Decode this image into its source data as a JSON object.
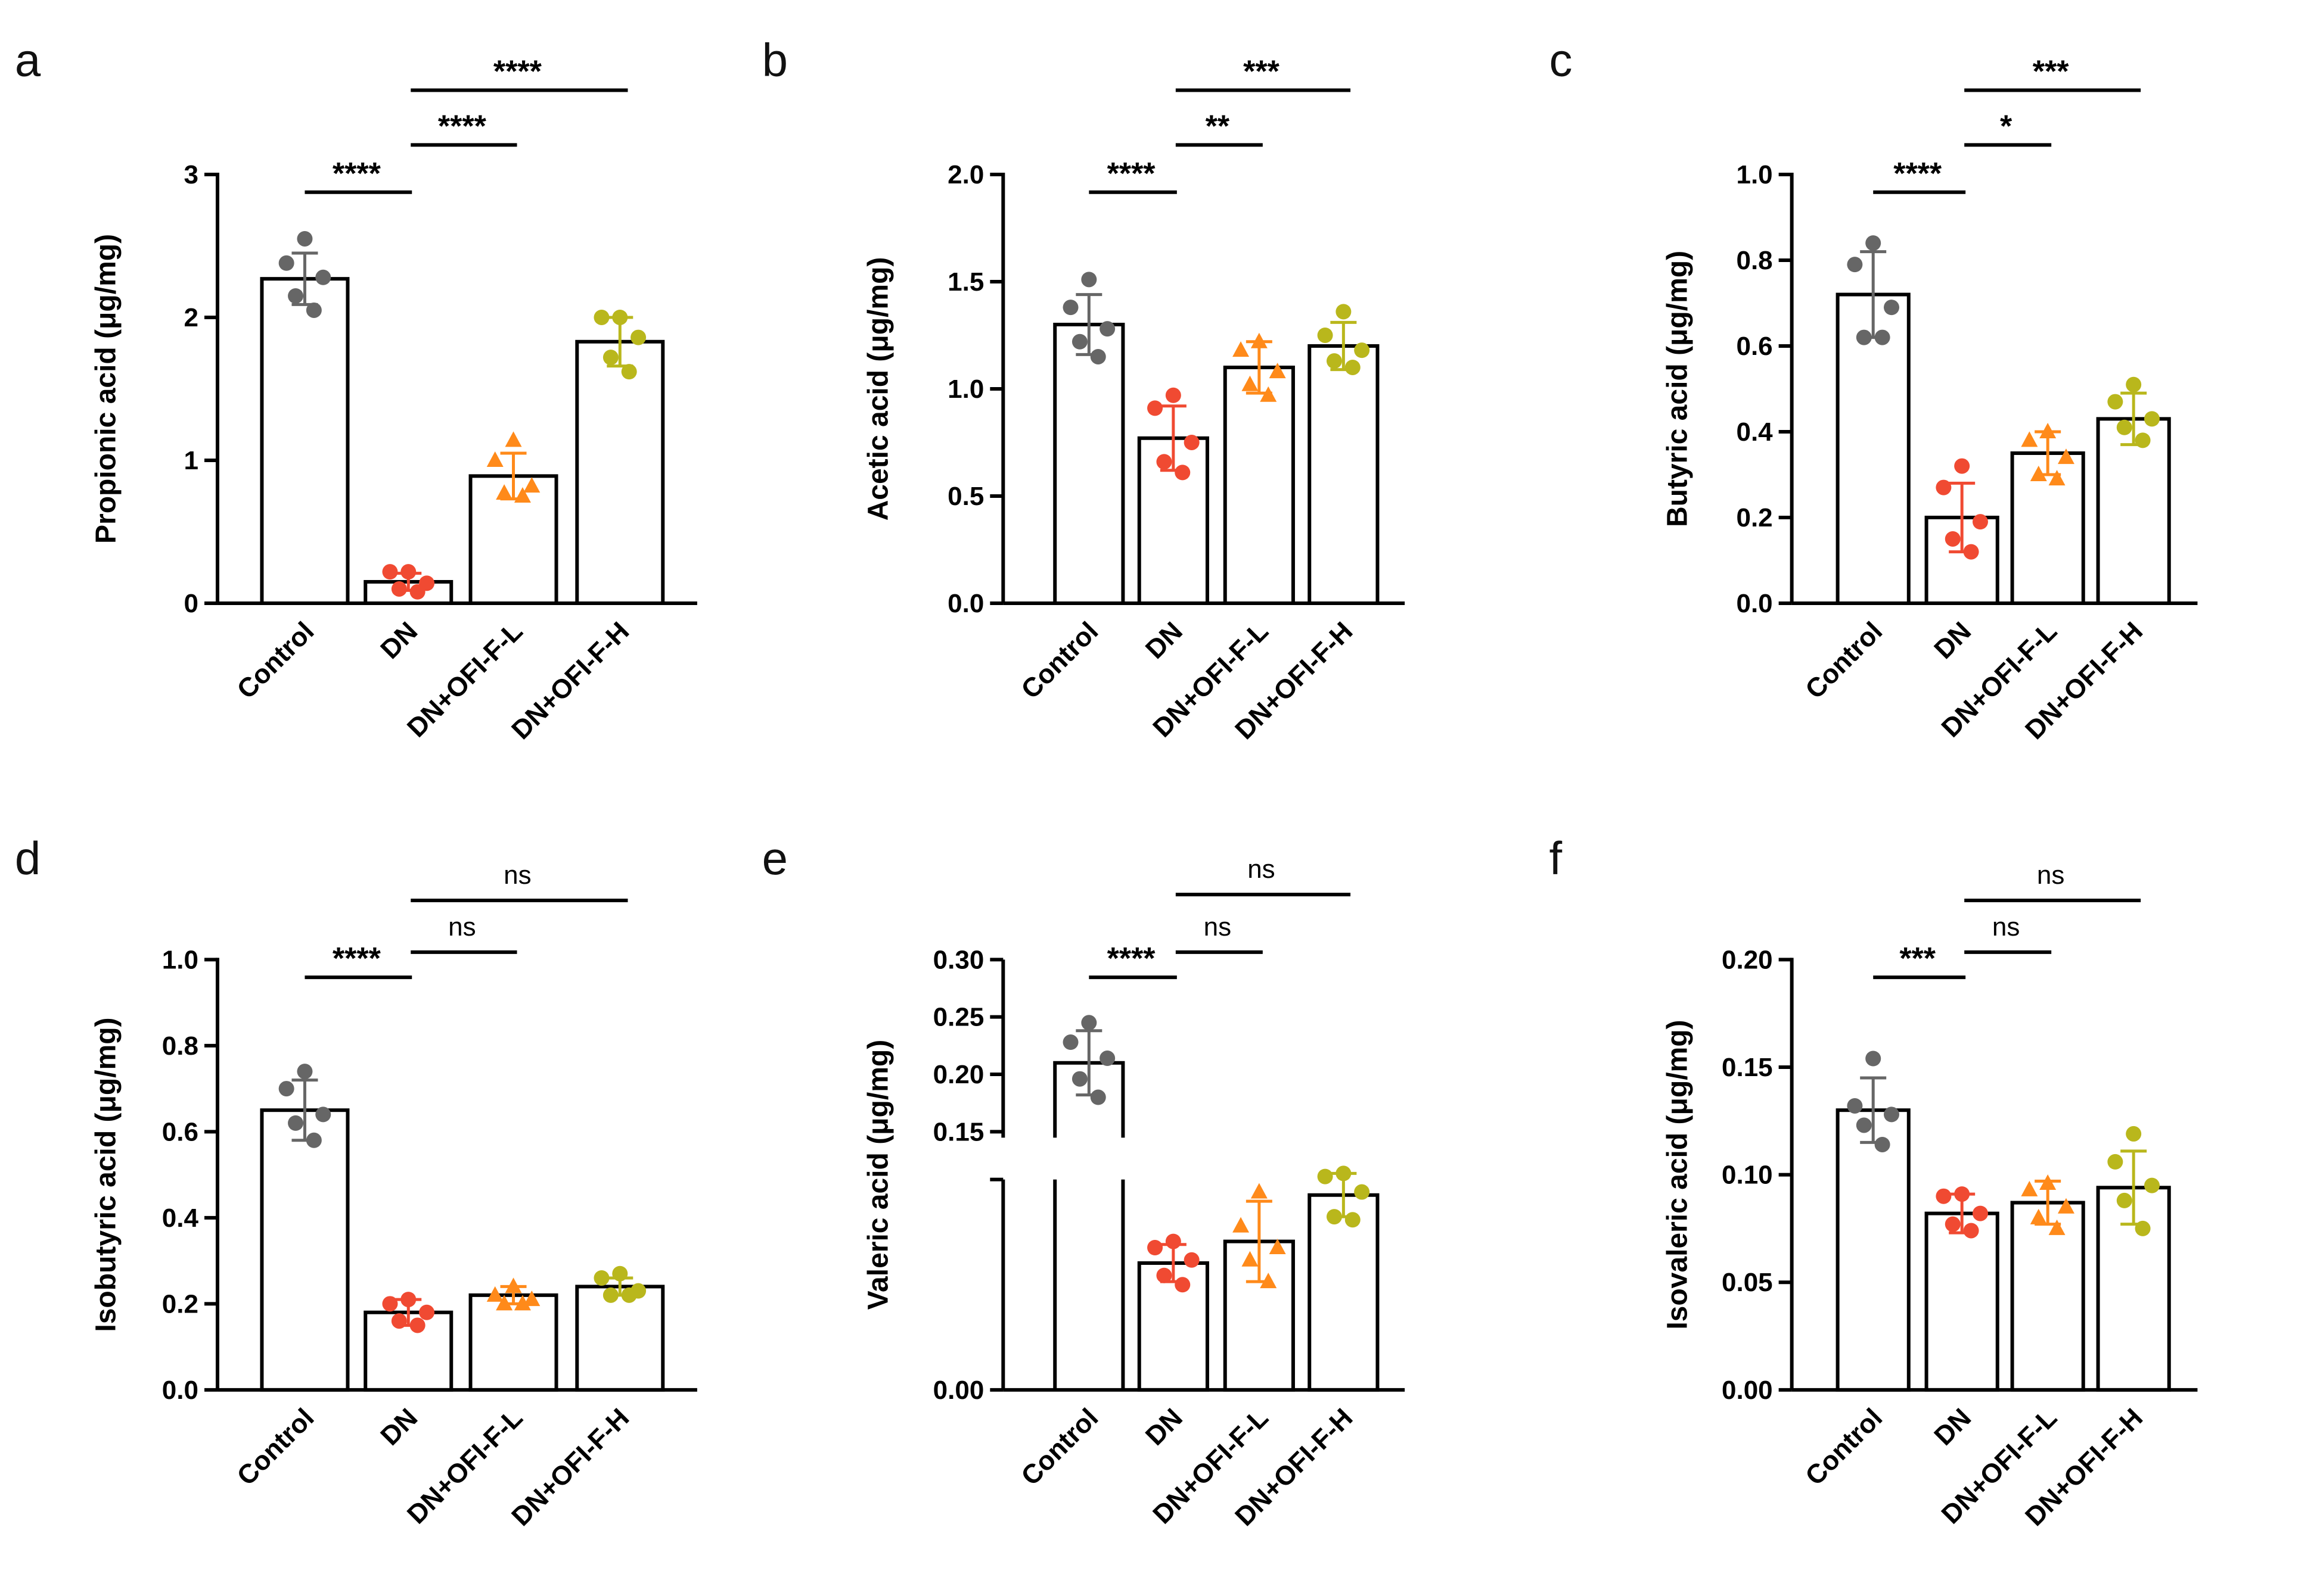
{
  "categories": [
    "Control",
    "DN",
    "DN+OFI-F-L",
    "DN+OFI-F-H"
  ],
  "group_colors": [
    "#666666",
    "#f04a32",
    "#ff8a1a",
    "#b9b71c"
  ],
  "group_markers": [
    "circle",
    "circle",
    "triangle",
    "circle"
  ],
  "chart_data": [
    {
      "panel": "a",
      "type": "bar",
      "ylabel": "Propionic acid (μg/mg)",
      "ylim": [
        0,
        3
      ],
      "yticks": [
        0,
        1,
        2,
        3
      ],
      "tick_decimals": 0,
      "categories": [
        "Control",
        "DN",
        "DN+OFI-F-L",
        "DN+OFI-F-H"
      ],
      "values": [
        2.27,
        0.15,
        0.89,
        1.83
      ],
      "sd": [
        0.18,
        0.06,
        0.16,
        0.17
      ],
      "points": [
        [
          2.55,
          2.38,
          2.28,
          2.15,
          2.05
        ],
        [
          0.22,
          0.22,
          0.14,
          0.1,
          0.08
        ],
        [
          1.14,
          1.0,
          0.82,
          0.77,
          0.75
        ],
        [
          2.0,
          2.0,
          1.86,
          1.72,
          1.62
        ]
      ],
      "comparisons": [
        {
          "from": 0,
          "to": 1,
          "label": "****"
        },
        {
          "from": 1,
          "to": 2,
          "label": "****"
        },
        {
          "from": 1,
          "to": 3,
          "label": "****"
        }
      ]
    },
    {
      "panel": "b",
      "type": "bar",
      "ylabel": "Acetic acid (μg/mg)",
      "ylim": [
        0,
        2
      ],
      "yticks": [
        0.0,
        0.5,
        1.0,
        1.5,
        2.0
      ],
      "tick_decimals": 1,
      "categories": [
        "Control",
        "DN",
        "DN+OFI-F-L",
        "DN+OFI-F-H"
      ],
      "values": [
        1.3,
        0.77,
        1.1,
        1.2
      ],
      "sd": [
        0.14,
        0.15,
        0.12,
        0.11
      ],
      "points": [
        [
          1.51,
          1.38,
          1.28,
          1.22,
          1.15
        ],
        [
          0.97,
          0.91,
          0.75,
          0.66,
          0.61
        ],
        [
          1.22,
          1.18,
          1.08,
          1.02,
          0.97
        ],
        [
          1.36,
          1.25,
          1.18,
          1.13,
          1.1
        ]
      ],
      "comparisons": [
        {
          "from": 0,
          "to": 1,
          "label": "****"
        },
        {
          "from": 1,
          "to": 2,
          "label": "**"
        },
        {
          "from": 1,
          "to": 3,
          "label": "***"
        }
      ]
    },
    {
      "panel": "c",
      "type": "bar",
      "ylabel": "Butyric acid (μg/mg)",
      "ylim": [
        0,
        1
      ],
      "yticks": [
        0.0,
        0.2,
        0.4,
        0.6,
        0.8,
        1.0
      ],
      "tick_decimals": 1,
      "categories": [
        "Control",
        "DN",
        "DN+OFI-F-L",
        "DN+OFI-F-H"
      ],
      "values": [
        0.72,
        0.2,
        0.35,
        0.43
      ],
      "sd": [
        0.1,
        0.08,
        0.05,
        0.06
      ],
      "points": [
        [
          0.84,
          0.79,
          0.69,
          0.62,
          0.62
        ],
        [
          0.32,
          0.27,
          0.19,
          0.15,
          0.12
        ],
        [
          0.4,
          0.38,
          0.34,
          0.3,
          0.29
        ],
        [
          0.51,
          0.47,
          0.43,
          0.41,
          0.38
        ]
      ],
      "comparisons": [
        {
          "from": 0,
          "to": 1,
          "label": "****"
        },
        {
          "from": 1,
          "to": 2,
          "label": "*"
        },
        {
          "from": 1,
          "to": 3,
          "label": "***"
        }
      ]
    },
    {
      "panel": "d",
      "type": "bar",
      "ylabel": "Isobutyric acid (μg/mg)",
      "ylim": [
        0,
        1
      ],
      "yticks": [
        0.0,
        0.2,
        0.4,
        0.6,
        0.8,
        1.0
      ],
      "tick_decimals": 1,
      "categories": [
        "Control",
        "DN",
        "DN+OFI-F-L",
        "DN+OFI-F-H"
      ],
      "values": [
        0.65,
        0.18,
        0.22,
        0.24
      ],
      "sd": [
        0.07,
        0.03,
        0.02,
        0.02
      ],
      "points": [
        [
          0.74,
          0.7,
          0.64,
          0.62,
          0.58
        ],
        [
          0.21,
          0.2,
          0.18,
          0.16,
          0.15
        ],
        [
          0.24,
          0.22,
          0.21,
          0.2,
          0.2
        ],
        [
          0.27,
          0.26,
          0.23,
          0.22,
          0.22
        ]
      ],
      "comparisons": [
        {
          "from": 0,
          "to": 1,
          "label": "****"
        },
        {
          "from": 1,
          "to": 2,
          "label": "ns"
        },
        {
          "from": 1,
          "to": 3,
          "label": "ns"
        }
      ]
    },
    {
      "panel": "e",
      "type": "bar",
      "ylabel": "Valeric acid (μg/mg)",
      "axis_break": true,
      "ylim": [
        0,
        0.3
      ],
      "yticks": [
        0.0,
        0.15,
        0.2,
        0.25,
        0.3
      ],
      "tick_decimals": 2,
      "categories": [
        "Control",
        "DN",
        "DN+OFI-F-L",
        "DN+OFI-F-H"
      ],
      "values": [
        0.21,
        0.041,
        0.048,
        0.063
      ],
      "sd": [
        0.028,
        0.006,
        0.013,
        0.007
      ],
      "points": [
        [
          0.245,
          0.228,
          0.214,
          0.196,
          0.18
        ],
        [
          0.048,
          0.046,
          0.042,
          0.037,
          0.034
        ],
        [
          0.064,
          0.053,
          0.046,
          0.042,
          0.035
        ],
        [
          0.07,
          0.069,
          0.064,
          0.056,
          0.055
        ]
      ],
      "comparisons": [
        {
          "from": 0,
          "to": 1,
          "label": "****"
        },
        {
          "from": 1,
          "to": 2,
          "label": "ns"
        },
        {
          "from": 1,
          "to": 3,
          "label": "ns"
        }
      ]
    },
    {
      "panel": "f",
      "type": "bar",
      "ylabel": "Isovaleric acid (μg/mg)",
      "ylim": [
        0,
        0.2
      ],
      "yticks": [
        0.0,
        0.05,
        0.1,
        0.15,
        0.2
      ],
      "tick_decimals": 2,
      "categories": [
        "Control",
        "DN",
        "DN+OFI-F-L",
        "DN+OFI-F-H"
      ],
      "values": [
        0.13,
        0.082,
        0.087,
        0.094
      ],
      "sd": [
        0.015,
        0.009,
        0.01,
        0.017
      ],
      "points": [
        [
          0.154,
          0.132,
          0.128,
          0.123,
          0.114
        ],
        [
          0.091,
          0.09,
          0.082,
          0.077,
          0.074
        ],
        [
          0.096,
          0.093,
          0.085,
          0.08,
          0.075
        ],
        [
          0.119,
          0.106,
          0.095,
          0.088,
          0.075
        ]
      ],
      "comparisons": [
        {
          "from": 0,
          "to": 1,
          "label": "***"
        },
        {
          "from": 1,
          "to": 2,
          "label": "ns"
        },
        {
          "from": 1,
          "to": 3,
          "label": "ns"
        }
      ]
    }
  ]
}
